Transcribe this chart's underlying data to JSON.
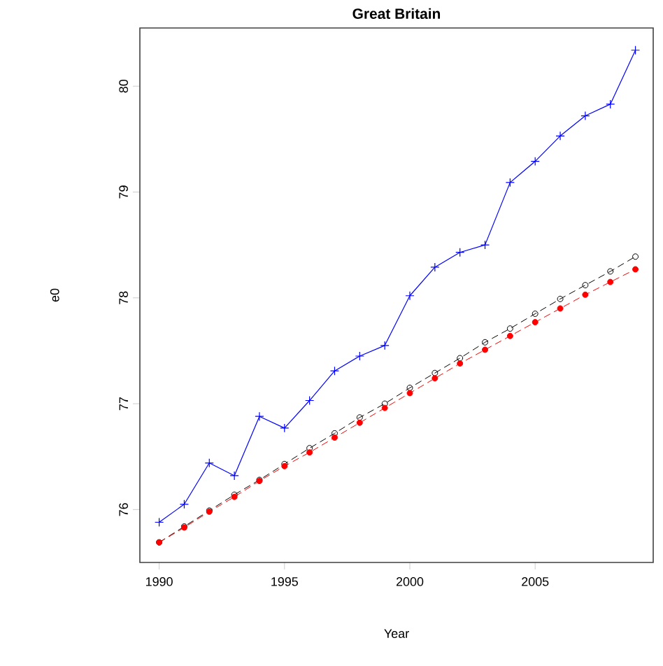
{
  "chart_data": {
    "type": "line",
    "title": "Great Britain",
    "xlabel": "Year",
    "ylabel": "e0",
    "x": [
      1990,
      1991,
      1992,
      1993,
      1994,
      1995,
      1996,
      1997,
      1998,
      1999,
      2000,
      2001,
      2002,
      2003,
      2004,
      2005,
      2006,
      2007,
      2008,
      2009
    ],
    "series": [
      {
        "color": "#0000ff",
        "marker": "cross",
        "line_style": "solid",
        "values": [
          75.88,
          76.05,
          76.44,
          76.32,
          76.88,
          76.77,
          77.03,
          77.31,
          77.45,
          77.55,
          78.02,
          78.29,
          78.43,
          78.5,
          79.09,
          79.29,
          79.53,
          79.72,
          79.83,
          80.34
        ]
      },
      {
        "color": "#000000",
        "marker": "circle",
        "line_style": "dashed",
        "values": [
          75.69,
          75.84,
          75.99,
          76.14,
          76.28,
          76.43,
          76.58,
          76.72,
          76.87,
          77.0,
          77.15,
          77.29,
          77.43,
          77.58,
          77.71,
          77.85,
          77.99,
          78.12,
          78.25,
          78.39
        ]
      },
      {
        "color": "#ff0000",
        "marker": "filled circle",
        "line_style": "dashed",
        "values": [
          75.69,
          75.83,
          75.98,
          76.12,
          76.27,
          76.41,
          76.54,
          76.68,
          76.82,
          76.96,
          77.1,
          77.24,
          77.38,
          77.51,
          77.64,
          77.77,
          77.9,
          78.03,
          78.15,
          78.27
        ]
      }
    ],
    "xlim": [
      1989.23,
      2009.71
    ],
    "ylim": [
      75.5,
      80.55
    ],
    "xticks": [
      1990,
      1995,
      2000,
      2005
    ],
    "yticks": [
      76,
      77,
      78,
      79,
      80
    ],
    "grid": false
  }
}
